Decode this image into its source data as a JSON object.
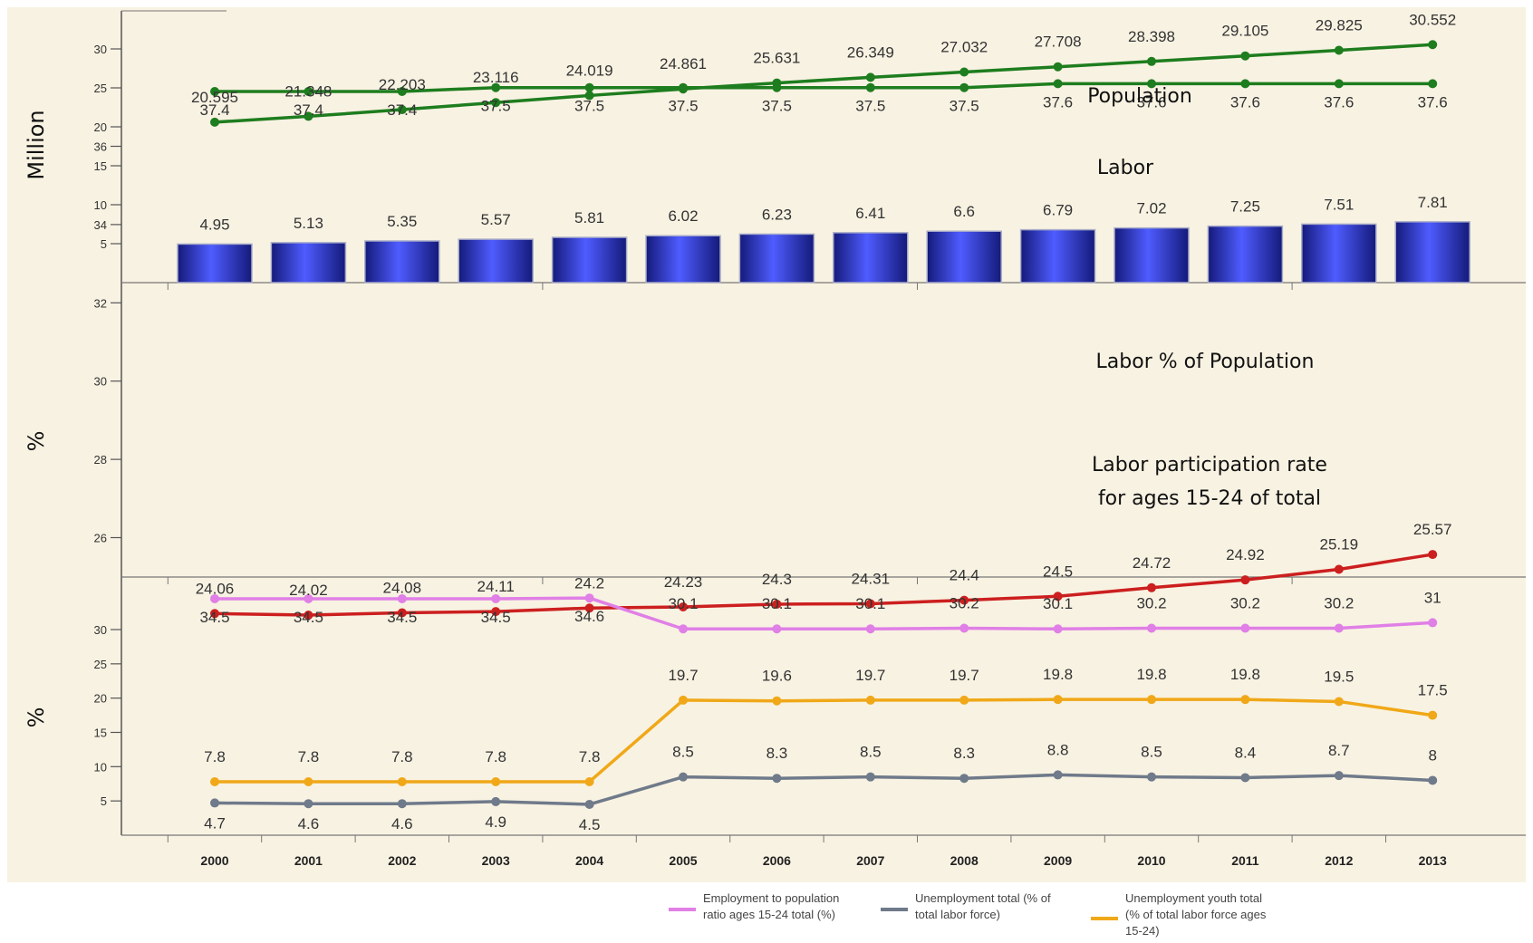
{
  "colors": {
    "background": "#f8f2e2",
    "population": "#1e7d1e",
    "labor_pct": "#1e7d1e",
    "participation": "#cc1f1f",
    "employment_ratio": "#e07fe6",
    "unemployment_total": "#6f7a8a",
    "unemployment_youth": "#f0a818",
    "bar_dark": "#141a7a",
    "bar_light": "#4f5cff"
  },
  "panels": {
    "top": {
      "ylabel": "Million",
      "yticks": [
        5,
        10,
        15,
        20,
        25,
        30
      ],
      "ylim": [
        0,
        35
      ]
    },
    "middle": {
      "ylabel": "%",
      "yticks": [
        26,
        28,
        30,
        32,
        34,
        36
      ],
      "ylim": [
        24,
        38
      ]
    },
    "bottom": {
      "ylabel": "%",
      "yticks": [
        5,
        10,
        15,
        20,
        25,
        30
      ],
      "ylim": [
        0,
        35
      ]
    }
  },
  "annotations": {
    "population": "Population",
    "labor": "Labor",
    "labor_pct": "Labor % of Population",
    "participation_line1": "Labor participation rate",
    "participation_line2": "for ages 15-24 of total"
  },
  "legend": [
    {
      "key": "employment_ratio",
      "line1": "Employment to population",
      "line2": "ratio ages 15-24 total (%)",
      "line3": ""
    },
    {
      "key": "unemployment_total",
      "line1": "Unemployment total (% of",
      "line2": "total labor force)",
      "line3": ""
    },
    {
      "key": "unemployment_youth",
      "line1": "Unemployment youth total",
      "line2": "(% of total labor force ages",
      "line3": "15-24)"
    }
  ],
  "chart_data": [
    {
      "type": "line",
      "panel": "top",
      "ylabel": "Million",
      "ylim": [
        0,
        35
      ],
      "x": [
        "2000",
        "2001",
        "2002",
        "2003",
        "2004",
        "2005",
        "2006",
        "2007",
        "2008",
        "2009",
        "2010",
        "2011",
        "2012",
        "2013"
      ],
      "series": [
        {
          "name": "Population",
          "key": "population",
          "values": [
            20.595,
            21.348,
            22.203,
            23.116,
            24.019,
            24.861,
            25.631,
            26.349,
            27.032,
            27.708,
            28.398,
            29.105,
            29.825,
            30.552
          ],
          "labels": [
            "20.595",
            "21.348",
            "22.203",
            "23.116",
            "24.019",
            "24.861",
            "25.631",
            "26.349",
            "27.032",
            "27.708",
            "28.398",
            "29.105",
            "29.825",
            "30.552"
          ]
        }
      ]
    },
    {
      "type": "bar",
      "panel": "top",
      "ylabel": "Million",
      "ylim": [
        0,
        35
      ],
      "categories": [
        "2000",
        "2001",
        "2002",
        "2003",
        "2004",
        "2005",
        "2006",
        "2007",
        "2008",
        "2009",
        "2010",
        "2011",
        "2012",
        "2013"
      ],
      "series": [
        {
          "name": "Labor",
          "key": "labor",
          "values": [
            4.95,
            5.13,
            5.35,
            5.57,
            5.81,
            6.02,
            6.23,
            6.41,
            6.6,
            6.79,
            7.02,
            7.25,
            7.51,
            7.81
          ],
          "labels": [
            "4.95",
            "5.13",
            "5.35",
            "5.57",
            "5.81",
            "6.02",
            "6.23",
            "6.41",
            "6.6",
            "6.79",
            "7.02",
            "7.25",
            "7.51",
            "7.81"
          ]
        }
      ]
    },
    {
      "type": "line",
      "panel": "middle",
      "ylabel": "%",
      "ylim": [
        24,
        38
      ],
      "x": [
        "2000",
        "2001",
        "2002",
        "2003",
        "2004",
        "2005",
        "2006",
        "2007",
        "2008",
        "2009",
        "2010",
        "2011",
        "2012",
        "2013"
      ],
      "series": [
        {
          "name": "Labor % of Population",
          "key": "labor_pct",
          "values": [
            37.4,
            37.4,
            37.4,
            37.5,
            37.5,
            37.5,
            37.5,
            37.5,
            37.5,
            37.6,
            37.6,
            37.6,
            37.6,
            37.6
          ],
          "labels": [
            "37.4",
            "37.4",
            "37.4",
            "37.5",
            "37.5",
            "37.5",
            "37.5",
            "37.5",
            "37.5",
            "37.6",
            "37.6",
            "37.6",
            "37.6",
            "37.6"
          ]
        },
        {
          "name": "Labor participation rate for ages 15-24 of total",
          "key": "participation",
          "values": [
            24.06,
            24.02,
            24.08,
            24.11,
            24.2,
            24.23,
            24.3,
            24.31,
            24.4,
            24.5,
            24.72,
            24.92,
            25.19,
            25.57
          ],
          "labels": [
            "24.06",
            "24.02",
            "24.08",
            "24.11",
            "24.2",
            "24.23",
            "24.3",
            "24.31",
            "24.4",
            "24.5",
            "24.72",
            "24.92",
            "25.19",
            "25.57"
          ]
        }
      ]
    },
    {
      "type": "line",
      "panel": "bottom",
      "ylabel": "%",
      "ylim": [
        0,
        35
      ],
      "x": [
        "2000",
        "2001",
        "2002",
        "2003",
        "2004",
        "2005",
        "2006",
        "2007",
        "2008",
        "2009",
        "2010",
        "2011",
        "2012",
        "2013"
      ],
      "series": [
        {
          "name": "Employment to population ratio ages 15-24 total (%)",
          "key": "employment_ratio",
          "values": [
            34.5,
            34.5,
            34.5,
            34.5,
            34.6,
            30.1,
            30.1,
            30.1,
            30.2,
            30.1,
            30.2,
            30.2,
            30.2,
            31
          ],
          "labels": [
            "34.5",
            "34.5",
            "34.5",
            "34.5",
            "34.6",
            "30.1",
            "30.1",
            "30.1",
            "30.2",
            "30.1",
            "30.2",
            "30.2",
            "30.2",
            "31"
          ]
        },
        {
          "name": "Unemployment total (% of total labor force)",
          "key": "unemployment_total",
          "values": [
            4.7,
            4.6,
            4.6,
            4.9,
            4.5,
            8.5,
            8.3,
            8.5,
            8.3,
            8.8,
            8.5,
            8.4,
            8.7,
            8
          ],
          "labels": [
            "4.7",
            "4.6",
            "4.6",
            "4.9",
            "4.5",
            "8.5",
            "8.3",
            "8.5",
            "8.3",
            "8.8",
            "8.5",
            "8.4",
            "8.7",
            "8"
          ]
        },
        {
          "name": "Unemployment youth total (% of total labor force ages 15-24)",
          "key": "unemployment_youth",
          "values": [
            7.8,
            7.8,
            7.8,
            7.8,
            7.8,
            19.7,
            19.6,
            19.7,
            19.7,
            19.8,
            19.8,
            19.8,
            19.5,
            17.5
          ],
          "labels": [
            "7.8",
            "7.8",
            "7.8",
            "7.8",
            "7.8",
            "19.7",
            "19.6",
            "19.7",
            "19.7",
            "19.8",
            "19.8",
            "19.8",
            "19.5",
            "17.5"
          ]
        }
      ]
    }
  ]
}
